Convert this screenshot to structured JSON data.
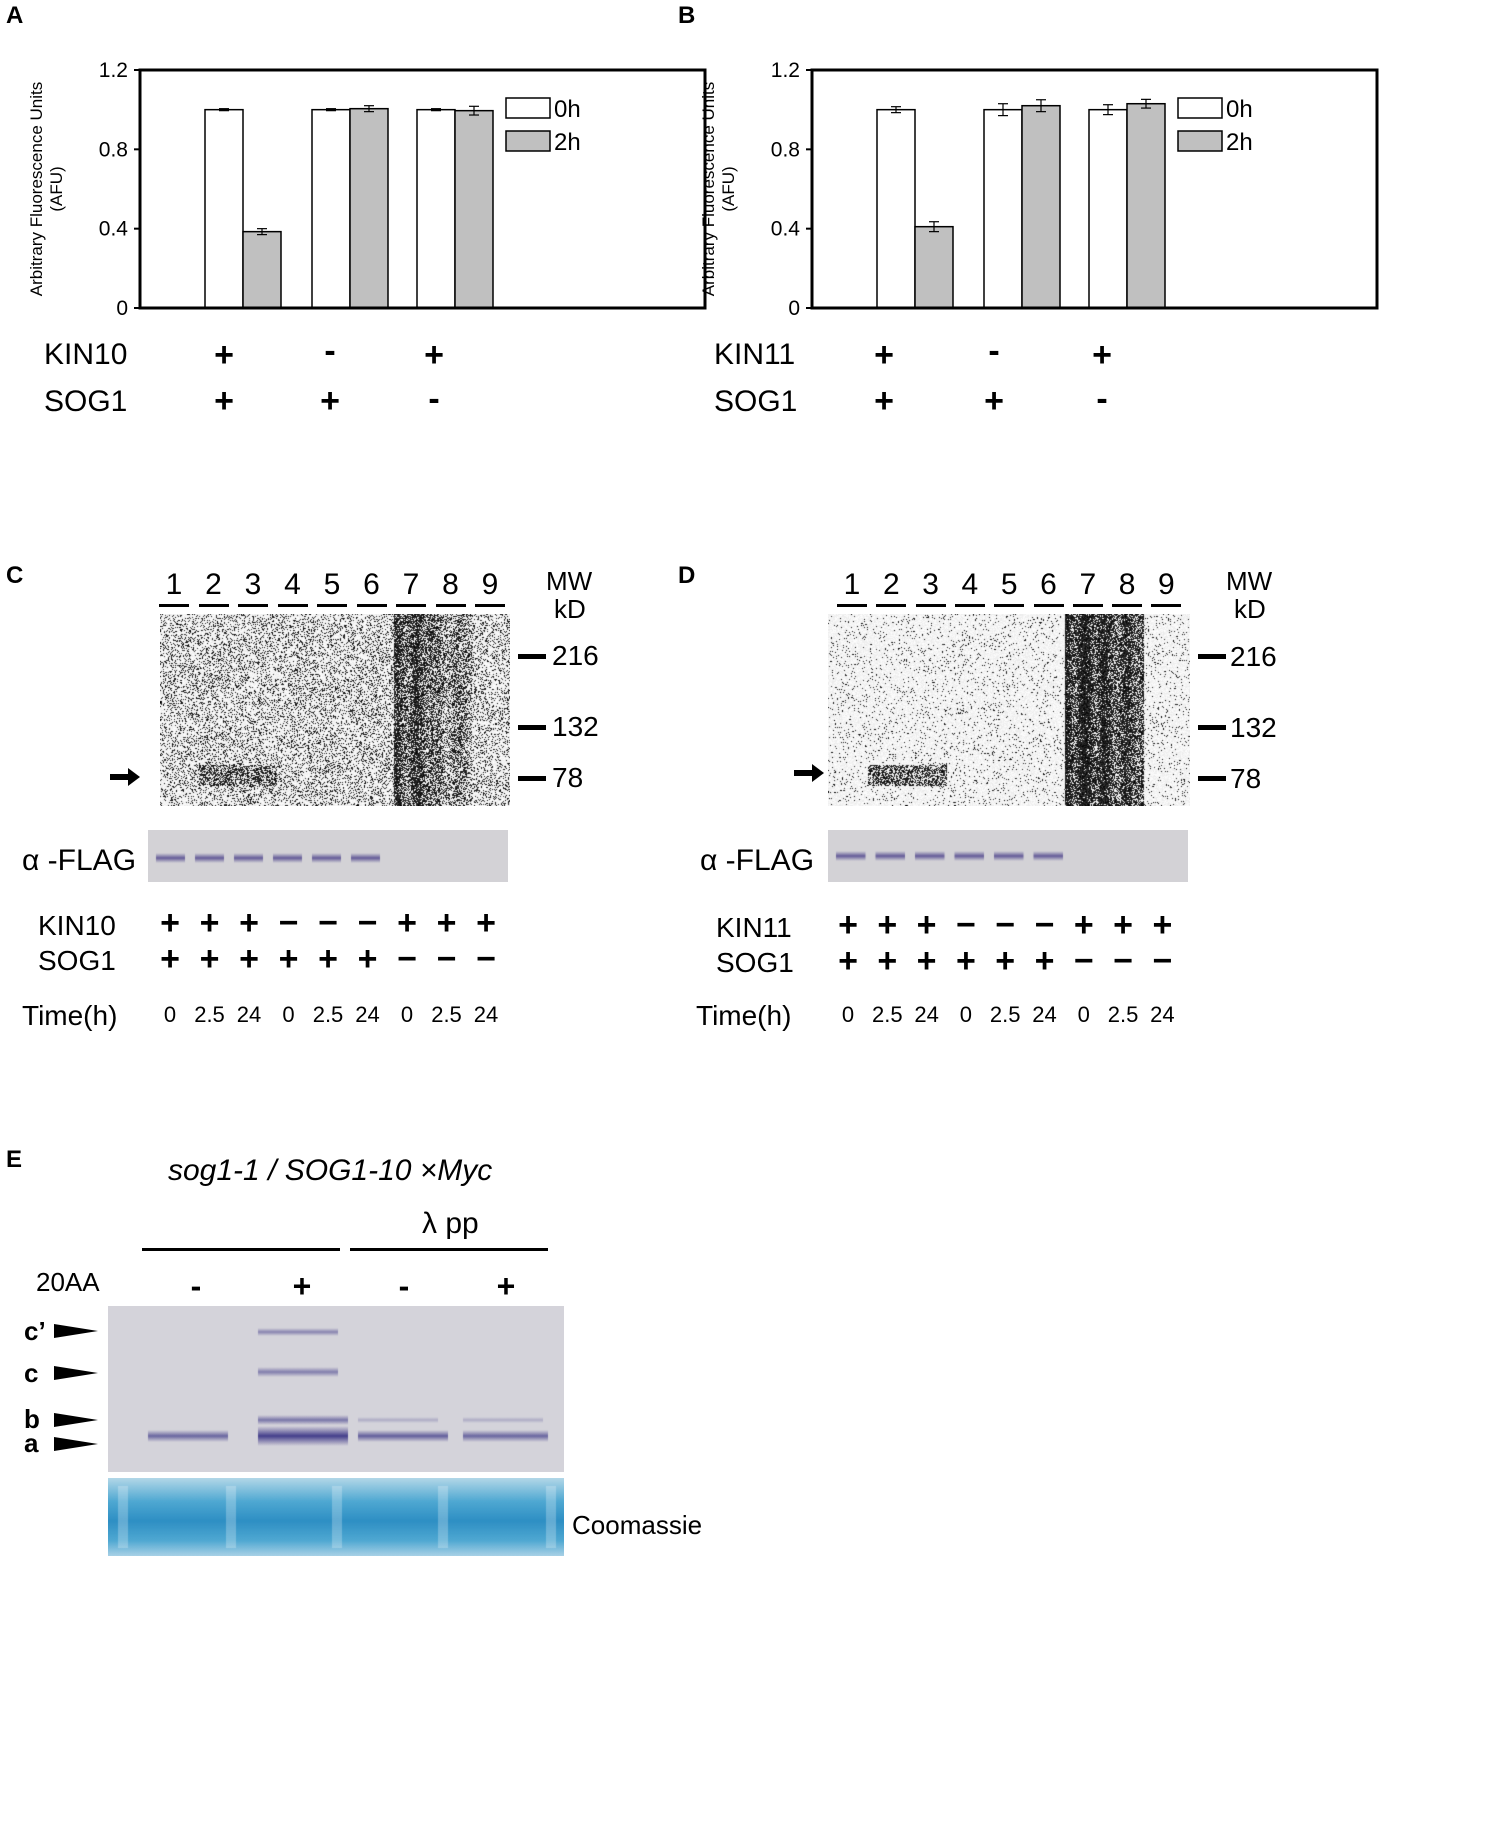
{
  "panels": {
    "A": {
      "letter": "A"
    },
    "B": {
      "letter": "B"
    },
    "C": {
      "letter": "C"
    },
    "D": {
      "letter": "D"
    },
    "E": {
      "letter": "E"
    }
  },
  "chart_data": [
    {
      "type": "bar",
      "panel": "A",
      "ylabel": "Arbitrary Fluorescence Units (AFU)",
      "ylabel_line1": "Arbitrary Fluorescence Units",
      "ylabel_line2": "(AFU)",
      "ylim": [
        0,
        1.2
      ],
      "yticks": [
        "0",
        "0.4",
        "0.8",
        "1.2"
      ],
      "ytick_values": [
        0,
        0.4,
        0.8,
        1.2
      ],
      "legend_position": "top-right",
      "series": [
        {
          "name": "0h",
          "color": "#ffffff",
          "values": [
            1.0,
            1.0,
            1.0
          ],
          "errors": [
            0.005,
            0.005,
            0.005
          ]
        },
        {
          "name": "2h",
          "color": "#c0c0c0",
          "values": [
            0.385,
            1.005,
            0.995
          ],
          "errors": [
            0.015,
            0.015,
            0.022
          ]
        }
      ],
      "conditions": {
        "row1_label": "KIN10",
        "row2_label": "SOG1",
        "row1": [
          "+",
          "-",
          "+"
        ],
        "row2": [
          "+",
          "+",
          "-"
        ]
      }
    },
    {
      "type": "bar",
      "panel": "B",
      "ylabel": "Arbitrary Fluorescence Units (AFU)",
      "ylabel_line1": "Arbitrary Fluorescence Units",
      "ylabel_line2": "(AFU)",
      "ylim": [
        0,
        1.2
      ],
      "yticks": [
        "0",
        "0.4",
        "0.8",
        "1.2"
      ],
      "ytick_values": [
        0,
        0.4,
        0.8,
        1.2
      ],
      "legend_position": "top-right",
      "series": [
        {
          "name": "0h",
          "color": "#ffffff",
          "values": [
            1.0,
            1.0,
            1.0
          ],
          "errors": [
            0.015,
            0.03,
            0.025
          ]
        },
        {
          "name": "2h",
          "color": "#c0c0c0",
          "values": [
            0.41,
            1.02,
            1.03
          ],
          "errors": [
            0.025,
            0.03,
            0.022
          ]
        }
      ],
      "conditions": {
        "row1_label": "KIN11",
        "row2_label": "SOG1",
        "row1": [
          "+",
          "-",
          "+"
        ],
        "row2": [
          "+",
          "+",
          "-"
        ]
      }
    }
  ],
  "blots": {
    "C": {
      "lanes": [
        "1",
        "2",
        "3",
        "4",
        "5",
        "6",
        "7",
        "8",
        "9"
      ],
      "mw_title1": "MW",
      "mw_title2": "kD",
      "mw_markers": [
        "216",
        "132",
        "78"
      ],
      "wb_label": "α -FLAG",
      "row1_label": "KIN10",
      "row2_label": "SOG1",
      "time_label": "Time(h)",
      "row1": [
        "+",
        "+",
        "+",
        "−",
        "−",
        "−",
        "+",
        "+",
        "+"
      ],
      "row2": [
        "+",
        "+",
        "+",
        "+",
        "+",
        "+",
        "−",
        "−",
        "−"
      ],
      "times": [
        "0",
        "2.5",
        "24",
        "0",
        "2.5",
        "24",
        "0",
        "2.5",
        "24"
      ]
    },
    "D": {
      "lanes": [
        "1",
        "2",
        "3",
        "4",
        "5",
        "6",
        "7",
        "8",
        "9"
      ],
      "mw_title1": "MW",
      "mw_title2": "kD",
      "mw_markers": [
        "216",
        "132",
        "78"
      ],
      "wb_label": "α -FLAG",
      "row1_label": "KIN11",
      "row2_label": "SOG1",
      "time_label": "Time(h)",
      "row1": [
        "+",
        "+",
        "+",
        "−",
        "−",
        "−",
        "+",
        "+",
        "+"
      ],
      "row2": [
        "+",
        "+",
        "+",
        "+",
        "+",
        "+",
        "−",
        "−",
        "−"
      ],
      "times": [
        "0",
        "2.5",
        "24",
        "0",
        "2.5",
        "24",
        "0",
        "2.5",
        "24"
      ]
    },
    "E": {
      "title": "sog1-1 / SOG1-10 ×Myc",
      "lambda_label": "λ pp",
      "treatment_label": "20AA",
      "treatment": [
        "-",
        "+",
        "-",
        "+"
      ],
      "bands": [
        "c’",
        "c",
        "b",
        "a"
      ],
      "stain_label": "Coomassie"
    }
  }
}
